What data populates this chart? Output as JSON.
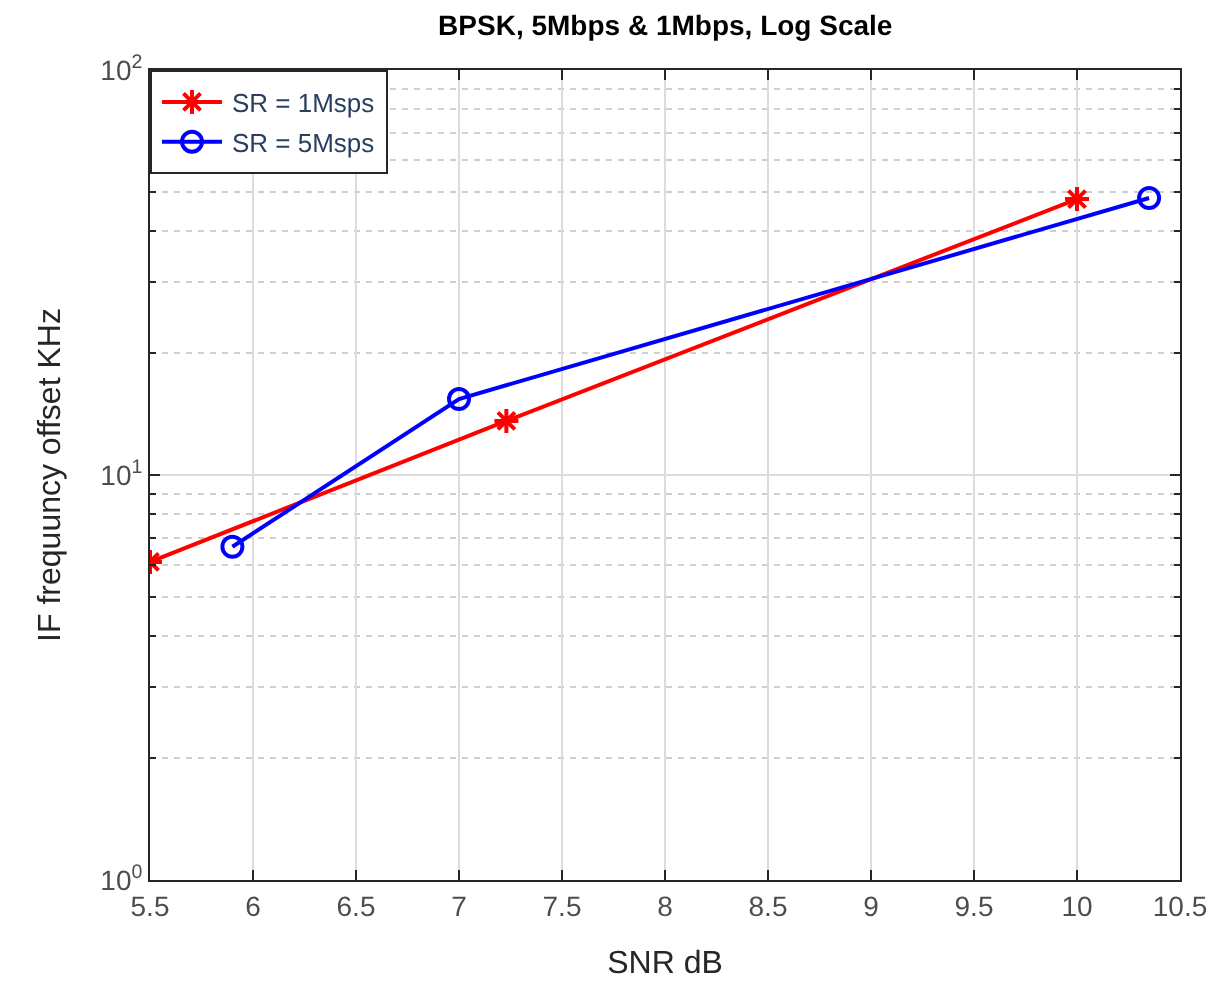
{
  "chart_data": {
    "type": "line",
    "title": "BPSK, 5Mbps & 1Mbps, Log Scale",
    "xlabel": "SNR dB",
    "ylabel": "IF frequuncy offset KHz",
    "series": [
      {
        "name": "SR = 1Msps",
        "color": "#ff0000",
        "marker": "cross",
        "x": [
          5.5,
          7.23,
          10.0
        ],
        "values": [
          6.1,
          13.6,
          48
        ]
      },
      {
        "name": "SR = 5Msps",
        "color": "#0000ff",
        "marker": "circle",
        "x": [
          5.9,
          7.0,
          10.35
        ],
        "values": [
          6.65,
          15.4,
          48.3
        ]
      }
    ],
    "xlim": [
      5.5,
      10.5
    ],
    "xticks": [
      5.5,
      6,
      6.5,
      7,
      7.5,
      8,
      8.5,
      9,
      9.5,
      10,
      10.5
    ],
    "ylim": [
      1,
      100
    ],
    "yticks": [
      {
        "value": 1,
        "label": "10$^{0}$"
      },
      {
        "value": 10,
        "label": "10$^{1}$"
      },
      {
        "value": 100,
        "label": "10$^{2}$"
      }
    ],
    "log": "y",
    "grid": true,
    "legend": "top left"
  }
}
